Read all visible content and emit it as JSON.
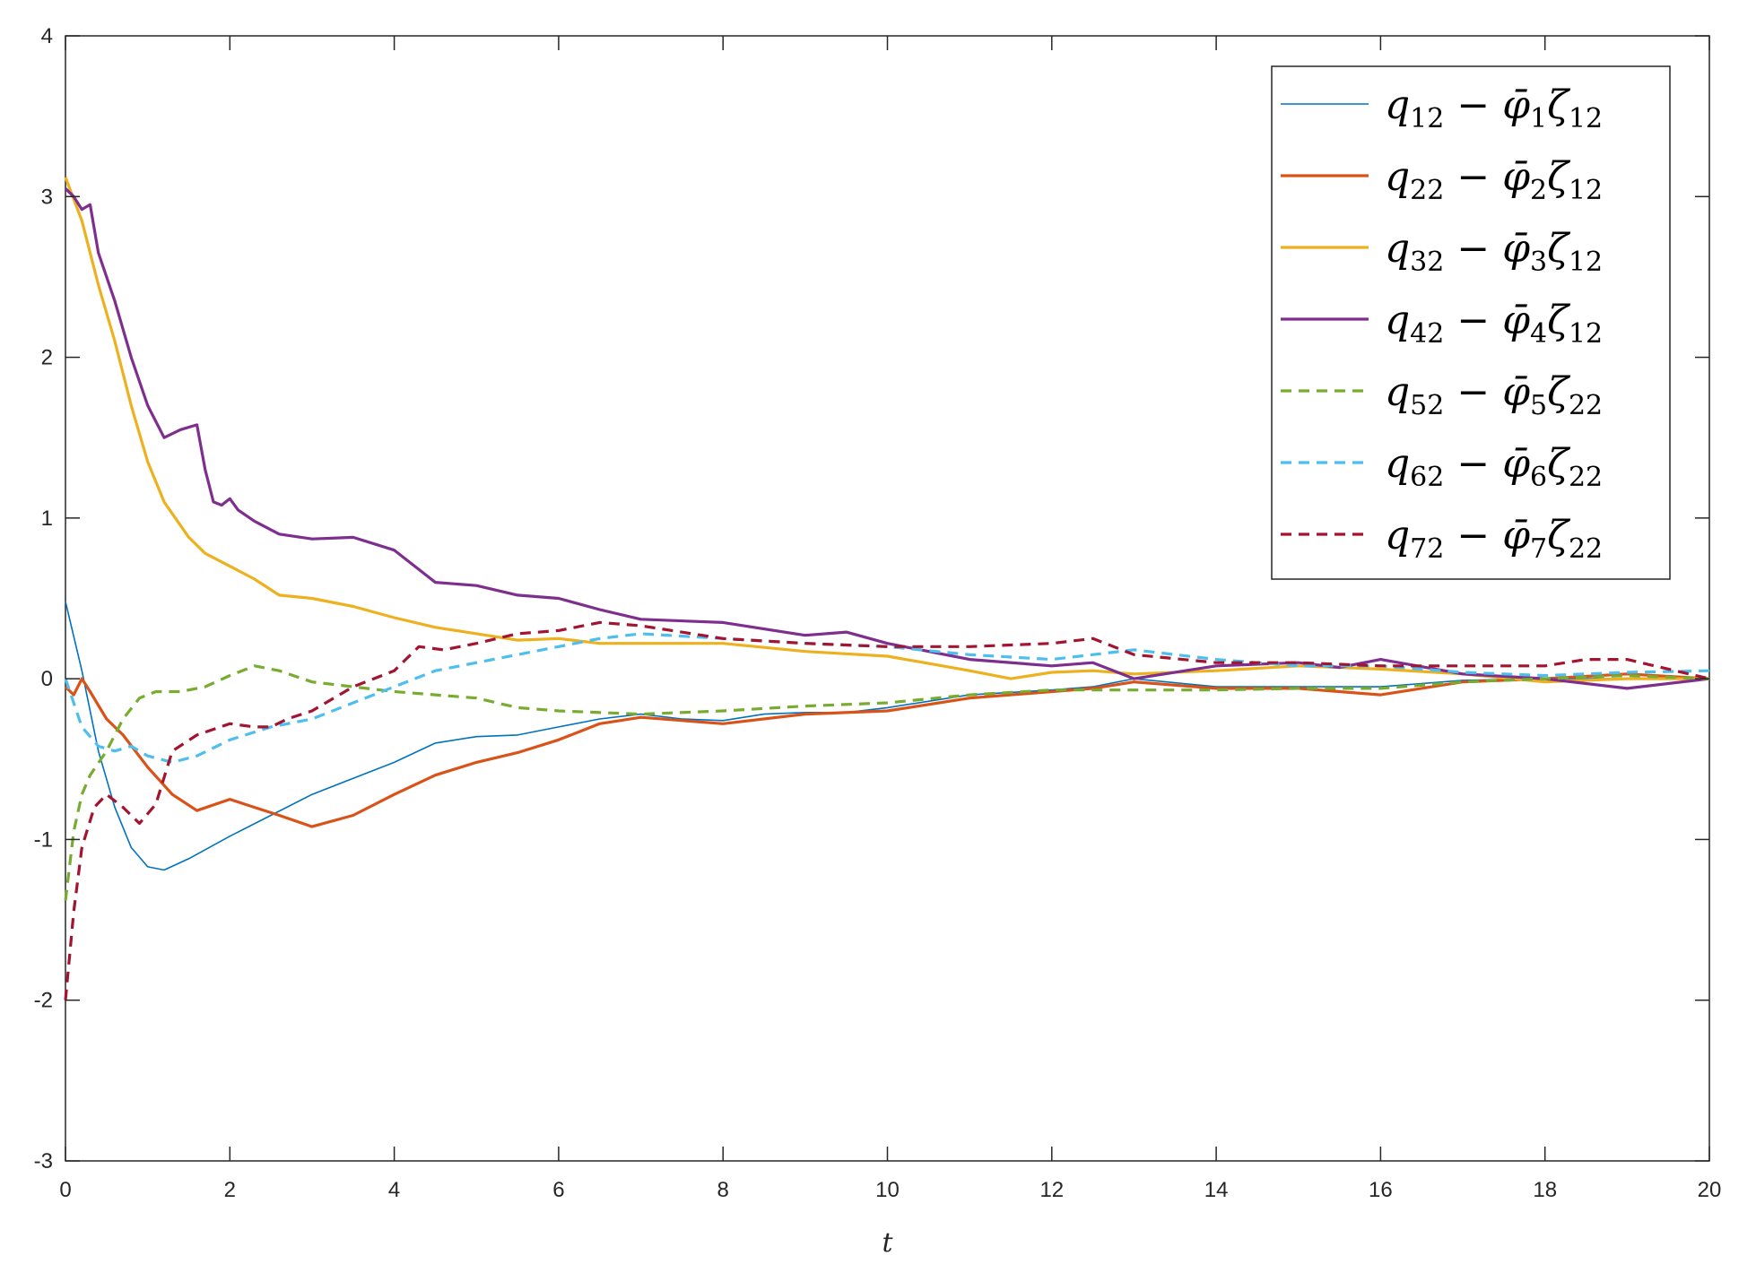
{
  "chart_data": {
    "type": "line",
    "title": "",
    "xlabel": "t",
    "ylabel": "",
    "xlim": [
      0,
      20
    ],
    "ylim": [
      -3,
      4
    ],
    "xticks": [
      0,
      2,
      4,
      6,
      8,
      10,
      12,
      14,
      16,
      18,
      20
    ],
    "yticks": [
      -3,
      -2,
      -1,
      0,
      1,
      2,
      3,
      4
    ],
    "grid": false,
    "legend_position": "top-right",
    "series": [
      {
        "name": "q12 − φ̄1ζ12",
        "legend": {
          "a": "q",
          "a_sub": "12",
          "b": "φ̄",
          "b_sub": "1",
          "c": "ζ",
          "c_sub": "12"
        },
        "color": "#0072BD",
        "dashed": false,
        "width": "thin",
        "x": [
          0,
          0.2,
          0.4,
          0.6,
          0.8,
          1.0,
          1.2,
          1.5,
          2.0,
          2.5,
          3.0,
          3.5,
          4.0,
          4.5,
          5.0,
          5.5,
          6.0,
          6.5,
          7.0,
          7.5,
          8.0,
          8.5,
          9.0,
          9.5,
          10,
          11,
          12,
          12.5,
          13,
          14,
          15,
          16,
          17,
          18,
          19,
          20
        ],
        "y": [
          0.48,
          0.05,
          -0.45,
          -0.8,
          -1.05,
          -1.17,
          -1.19,
          -1.12,
          -0.98,
          -0.85,
          -0.72,
          -0.62,
          -0.52,
          -0.4,
          -0.36,
          -0.35,
          -0.3,
          -0.25,
          -0.22,
          -0.25,
          -0.26,
          -0.22,
          -0.21,
          -0.21,
          -0.18,
          -0.1,
          -0.07,
          -0.05,
          0.0,
          -0.05,
          -0.05,
          -0.05,
          -0.01,
          0.0,
          0.0,
          0.0
        ]
      },
      {
        "name": "q22 − φ̄2ζ12",
        "legend": {
          "a": "q",
          "a_sub": "22",
          "b": "φ̄",
          "b_sub": "2",
          "c": "ζ",
          "c_sub": "12"
        },
        "color": "#D95319",
        "dashed": false,
        "width": "thick",
        "x": [
          0,
          0.1,
          0.2,
          0.3,
          0.5,
          0.7,
          1.0,
          1.3,
          1.6,
          2.0,
          2.3,
          2.6,
          3.0,
          3.5,
          4.0,
          4.5,
          5.0,
          5.5,
          6.0,
          6.5,
          7.0,
          8.0,
          9.0,
          10,
          11,
          12,
          12.5,
          13,
          14,
          15,
          16,
          17,
          18,
          19,
          20
        ],
        "y": [
          -0.05,
          -0.1,
          0.0,
          -0.08,
          -0.25,
          -0.35,
          -0.55,
          -0.72,
          -0.82,
          -0.75,
          -0.8,
          -0.85,
          -0.92,
          -0.85,
          -0.72,
          -0.6,
          -0.52,
          -0.46,
          -0.38,
          -0.28,
          -0.24,
          -0.28,
          -0.22,
          -0.2,
          -0.12,
          -0.08,
          -0.06,
          -0.02,
          -0.06,
          -0.06,
          -0.1,
          -0.02,
          0.0,
          0.03,
          0.0
        ]
      },
      {
        "name": "q32 − φ̄3ζ12",
        "legend": {
          "a": "q",
          "a_sub": "32",
          "b": "φ̄",
          "b_sub": "3",
          "c": "ζ",
          "c_sub": "12"
        },
        "color": "#EDB120",
        "dashed": false,
        "width": "thick",
        "x": [
          0,
          0.2,
          0.4,
          0.6,
          0.8,
          1.0,
          1.2,
          1.5,
          1.7,
          2.0,
          2.3,
          2.6,
          3.0,
          3.5,
          4.0,
          4.5,
          5.0,
          5.5,
          6.0,
          6.5,
          7.0,
          8.0,
          9.0,
          10,
          11,
          11.5,
          12,
          12.5,
          13,
          14,
          15,
          16,
          17,
          18,
          19,
          20
        ],
        "y": [
          3.12,
          2.85,
          2.45,
          2.1,
          1.7,
          1.35,
          1.1,
          0.88,
          0.78,
          0.7,
          0.62,
          0.52,
          0.5,
          0.45,
          0.38,
          0.32,
          0.28,
          0.24,
          0.25,
          0.22,
          0.22,
          0.22,
          0.17,
          0.14,
          0.05,
          0.0,
          0.04,
          0.05,
          0.03,
          0.05,
          0.08,
          0.06,
          0.03,
          -0.02,
          0.0,
          0.0
        ]
      },
      {
        "name": "q42 − φ̄4ζ12",
        "legend": {
          "a": "q",
          "a_sub": "42",
          "b": "φ̄",
          "b_sub": "4",
          "c": "ζ",
          "c_sub": "12"
        },
        "color": "#7E2F8E",
        "dashed": false,
        "width": "thick",
        "x": [
          0,
          0.1,
          0.2,
          0.3,
          0.4,
          0.6,
          0.8,
          1.0,
          1.2,
          1.4,
          1.6,
          1.7,
          1.8,
          1.9,
          2.0,
          2.1,
          2.3,
          2.6,
          3.0,
          3.5,
          4.0,
          4.5,
          5.0,
          5.5,
          6.0,
          6.5,
          7.0,
          8.0,
          9.0,
          9.5,
          10,
          11,
          12,
          12.5,
          13,
          14,
          15,
          15.5,
          16,
          17,
          18,
          19,
          20
        ],
        "y": [
          3.05,
          3.0,
          2.92,
          2.95,
          2.65,
          2.35,
          2.0,
          1.7,
          1.5,
          1.55,
          1.58,
          1.3,
          1.1,
          1.08,
          1.12,
          1.05,
          0.98,
          0.9,
          0.87,
          0.88,
          0.8,
          0.6,
          0.58,
          0.52,
          0.5,
          0.43,
          0.37,
          0.35,
          0.27,
          0.29,
          0.22,
          0.12,
          0.08,
          0.1,
          0.0,
          0.08,
          0.1,
          0.07,
          0.12,
          0.03,
          0.0,
          -0.06,
          0.0
        ]
      },
      {
        "name": "q52 − φ̄5ζ22",
        "legend": {
          "a": "q",
          "a_sub": "52",
          "b": "φ̄",
          "b_sub": "5",
          "c": "ζ",
          "c_sub": "22"
        },
        "color": "#77AC30",
        "dashed": true,
        "width": "thick",
        "x": [
          0,
          0.1,
          0.2,
          0.3,
          0.5,
          0.7,
          0.9,
          1.1,
          1.4,
          1.7,
          2.0,
          2.3,
          2.6,
          3.0,
          3.5,
          4.0,
          4.5,
          5.0,
          5.5,
          6.0,
          7.0,
          8.0,
          9.0,
          10,
          11,
          12,
          13,
          14,
          15,
          16,
          17,
          18,
          19,
          20
        ],
        "y": [
          -1.38,
          -0.95,
          -0.72,
          -0.6,
          -0.45,
          -0.25,
          -0.12,
          -0.08,
          -0.08,
          -0.05,
          0.02,
          0.08,
          0.05,
          -0.02,
          -0.05,
          -0.08,
          -0.1,
          -0.12,
          -0.18,
          -0.2,
          -0.22,
          -0.2,
          -0.17,
          -0.15,
          -0.1,
          -0.07,
          -0.07,
          -0.07,
          -0.06,
          -0.06,
          -0.02,
          0.0,
          0.02,
          0.0
        ]
      },
      {
        "name": "q62 − φ̄6ζ22",
        "legend": {
          "a": "q",
          "a_sub": "62",
          "b": "φ̄",
          "b_sub": "6",
          "c": "ζ",
          "c_sub": "22"
        },
        "color": "#4DBEEE",
        "dashed": true,
        "width": "thick",
        "x": [
          0,
          0.2,
          0.4,
          0.6,
          0.8,
          1.0,
          1.3,
          1.6,
          2.0,
          2.5,
          3.0,
          3.5,
          4.0,
          4.5,
          5.0,
          5.5,
          6.0,
          6.5,
          7.0,
          8.0,
          9.0,
          10,
          11,
          12,
          13,
          14,
          15,
          16,
          17,
          18,
          19,
          20
        ],
        "y": [
          0.0,
          -0.3,
          -0.42,
          -0.45,
          -0.42,
          -0.48,
          -0.52,
          -0.48,
          -0.38,
          -0.3,
          -0.25,
          -0.15,
          -0.05,
          0.05,
          0.1,
          0.15,
          0.2,
          0.25,
          0.28,
          0.25,
          0.22,
          0.2,
          0.15,
          0.12,
          0.18,
          0.12,
          0.08,
          0.08,
          0.04,
          0.02,
          0.04,
          0.05
        ]
      },
      {
        "name": "q72 − φ̄7ζ22",
        "legend": {
          "a": "q",
          "a_sub": "72",
          "b": "φ̄",
          "b_sub": "7",
          "c": "ζ",
          "c_sub": "22"
        },
        "color": "#A2142F",
        "dashed": true,
        "width": "thick",
        "x": [
          0,
          0.1,
          0.2,
          0.35,
          0.5,
          0.7,
          0.9,
          1.1,
          1.3,
          1.6,
          2.0,
          2.3,
          2.5,
          2.7,
          3.0,
          3.5,
          4.0,
          4.3,
          4.6,
          5.0,
          5.5,
          6.0,
          6.5,
          7.0,
          8.0,
          9.0,
          10,
          11,
          12,
          12.5,
          13,
          14,
          15,
          16,
          17,
          18,
          18.5,
          19,
          20
        ],
        "y": [
          -2.0,
          -1.45,
          -1.05,
          -0.8,
          -0.72,
          -0.8,
          -0.9,
          -0.78,
          -0.45,
          -0.35,
          -0.28,
          -0.3,
          -0.3,
          -0.25,
          -0.2,
          -0.05,
          0.05,
          0.2,
          0.18,
          0.22,
          0.28,
          0.3,
          0.35,
          0.33,
          0.25,
          0.22,
          0.2,
          0.2,
          0.22,
          0.25,
          0.15,
          0.1,
          0.1,
          0.08,
          0.08,
          0.08,
          0.12,
          0.12,
          0.0
        ]
      }
    ]
  }
}
